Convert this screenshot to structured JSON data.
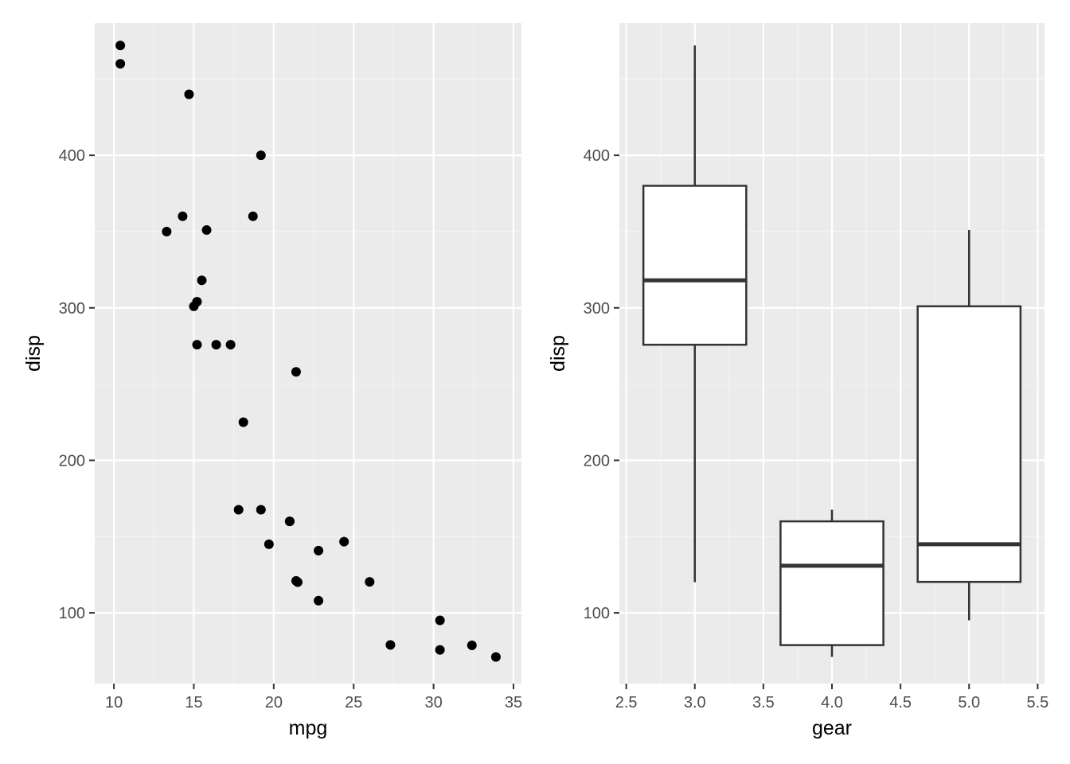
{
  "colors": {
    "panel_background": "#ebebeb",
    "grid_major": "#ffffff",
    "grid_minor": "#f5f5f5",
    "tick_text": "#4d4d4d",
    "tick_mark": "#333333",
    "point": "#000000",
    "box_fill": "#ffffff",
    "box_line": "#333333"
  },
  "chart_data": [
    {
      "type": "scatter",
      "xlabel": "mpg",
      "ylabel": "disp",
      "xlim": [
        8.8,
        35.5
      ],
      "ylim": [
        53.6,
        486.7
      ],
      "x_ticks": [
        "10",
        "15",
        "20",
        "25",
        "30",
        "35"
      ],
      "y_ticks": [
        "100",
        "200",
        "300",
        "400"
      ],
      "grid": true,
      "points": [
        {
          "x": 10.4,
          "y": 472
        },
        {
          "x": 10.4,
          "y": 460
        },
        {
          "x": 14.7,
          "y": 440
        },
        {
          "x": 19.2,
          "y": 400
        },
        {
          "x": 14.3,
          "y": 360
        },
        {
          "x": 18.7,
          "y": 360
        },
        {
          "x": 13.3,
          "y": 350
        },
        {
          "x": 15.8,
          "y": 351
        },
        {
          "x": 15.5,
          "y": 318
        },
        {
          "x": 15.2,
          "y": 304
        },
        {
          "x": 15.0,
          "y": 301
        },
        {
          "x": 15.2,
          "y": 275.8
        },
        {
          "x": 16.4,
          "y": 275.8
        },
        {
          "x": 17.3,
          "y": 275.8
        },
        {
          "x": 21.4,
          "y": 258
        },
        {
          "x": 18.1,
          "y": 225
        },
        {
          "x": 17.8,
          "y": 167.6
        },
        {
          "x": 19.2,
          "y": 167.6
        },
        {
          "x": 21.0,
          "y": 160
        },
        {
          "x": 21.0,
          "y": 160
        },
        {
          "x": 19.7,
          "y": 145
        },
        {
          "x": 22.8,
          "y": 140.8
        },
        {
          "x": 24.4,
          "y": 146.7
        },
        {
          "x": 21.4,
          "y": 121
        },
        {
          "x": 21.5,
          "y": 120.1
        },
        {
          "x": 26.0,
          "y": 120.3
        },
        {
          "x": 22.8,
          "y": 108
        },
        {
          "x": 30.4,
          "y": 95.1
        },
        {
          "x": 27.3,
          "y": 79
        },
        {
          "x": 32.4,
          "y": 78.7
        },
        {
          "x": 30.4,
          "y": 75.7
        },
        {
          "x": 33.9,
          "y": 71.1
        }
      ]
    },
    {
      "type": "box",
      "xlabel": "gear",
      "ylabel": "disp",
      "xlim": [
        2.45,
        5.55
      ],
      "ylim": [
        53.6,
        486.7
      ],
      "x_ticks": [
        "2.5",
        "3.0",
        "3.5",
        "4.0",
        "4.5",
        "5.0",
        "5.5"
      ],
      "y_ticks": [
        "100",
        "200",
        "300",
        "400"
      ],
      "grid": true,
      "boxes": [
        {
          "x": 3.0,
          "min": 120.1,
          "q1": 275.8,
          "median": 318,
          "q3": 380,
          "max": 472
        },
        {
          "x": 4.0,
          "min": 71.1,
          "q1": 78.85,
          "median": 130.9,
          "q3": 160,
          "max": 167.6
        },
        {
          "x": 5.0,
          "min": 95.1,
          "q1": 120.3,
          "median": 145,
          "q3": 301,
          "max": 351
        }
      ]
    }
  ]
}
